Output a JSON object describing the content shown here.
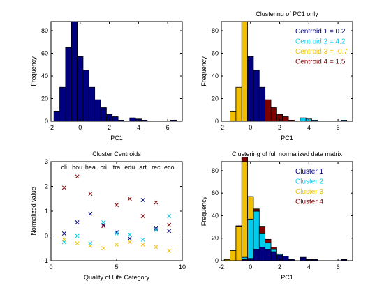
{
  "chart_data": [
    {
      "type": "bar",
      "title": "",
      "xlabel": "PC1",
      "ylabel": "Frequency",
      "xlim": [
        -2,
        7
      ],
      "ylim": [
        0,
        88
      ],
      "xticks": [
        -2,
        0,
        2,
        4,
        6
      ],
      "yticks": [
        0,
        20,
        40,
        60,
        80
      ],
      "bin_width": 0.4,
      "series": [
        {
          "color": "#000080",
          "bins": [
            [
              -1.8,
              9
            ],
            [
              -1.4,
              30
            ],
            [
              -1.0,
              65
            ],
            [
              -0.6,
              88
            ],
            [
              -0.2,
              57
            ],
            [
              0.2,
              45
            ],
            [
              0.6,
              30
            ],
            [
              1.0,
              19
            ],
            [
              1.4,
              12
            ],
            [
              1.8,
              6
            ],
            [
              2.2,
              4
            ],
            [
              2.6,
              1
            ],
            [
              3.4,
              3
            ],
            [
              3.8,
              2
            ],
            [
              4.2,
              1
            ],
            [
              6.2,
              1
            ]
          ]
        }
      ]
    },
    {
      "type": "bar",
      "title": "Clustering of PC1 only",
      "xlabel": "PC1",
      "ylabel": "Frequency",
      "xlim": [
        -2,
        7
      ],
      "ylim": [
        0,
        88
      ],
      "xticks": [
        -2,
        0,
        2,
        4,
        6
      ],
      "yticks": [
        0,
        20,
        40,
        60,
        80
      ],
      "bin_width": 0.4,
      "legend": [
        {
          "label": "Centroid 1 = 0.2",
          "color": "#000080"
        },
        {
          "label": "Centroid 2 = 4.2",
          "color": "#00ccee"
        },
        {
          "label": "Centroid 3 = -0.7",
          "color": "#f0c000"
        },
        {
          "label": "Centroid 4 = 1.5",
          "color": "#800000"
        }
      ],
      "series": [
        {
          "color": "#f0c000",
          "bins": [
            [
              -1.4,
              9
            ],
            [
              -1.0,
              30
            ],
            [
              -0.6,
              88
            ],
            [
              -0.2,
              27
            ]
          ]
        },
        {
          "color": "#000080",
          "bins": [
            [
              -0.2,
              57
            ],
            [
              0.2,
              45
            ],
            [
              0.6,
              30
            ]
          ]
        },
        {
          "color": "#800000",
          "bins": [
            [
              1.0,
              19
            ],
            [
              1.4,
              12
            ],
            [
              1.8,
              6
            ],
            [
              2.2,
              4
            ],
            [
              2.6,
              1
            ]
          ]
        },
        {
          "color": "#00ccee",
          "bins": [
            [
              3.4,
              3
            ],
            [
              3.8,
              2
            ],
            [
              4.2,
              1
            ],
            [
              6.2,
              1
            ]
          ]
        }
      ]
    },
    {
      "type": "scatter",
      "title": "Cluster Centroids",
      "xlabel": "Quality of Life Category",
      "ylabel": "Normalized value",
      "xlim": [
        0,
        10
      ],
      "ylim": [
        -1,
        3
      ],
      "xticks": [
        0,
        5,
        10
      ],
      "yticks": [
        -1,
        0,
        1,
        2,
        3
      ],
      "category_labels": [
        "cli",
        "hou",
        "hea",
        "cri",
        "tra",
        "edu",
        "art",
        "rec",
        "eco"
      ],
      "series": [
        {
          "color": "#000080",
          "x": [
            1,
            2,
            3,
            4,
            5,
            6,
            7,
            8,
            9
          ],
          "y": [
            0.1,
            0.55,
            0.9,
            0.45,
            0.15,
            -0.1,
            1.45,
            0.3,
            0.2
          ]
        },
        {
          "color": "#00ccee",
          "x": [
            1,
            2,
            3,
            4,
            5,
            6,
            7,
            8,
            9
          ],
          "y": [
            -0.25,
            0.0,
            -0.3,
            0.55,
            0.1,
            0.05,
            -0.15,
            0.25,
            0.8
          ]
        },
        {
          "color": "#f0c000",
          "x": [
            1,
            2,
            3,
            4,
            5,
            6,
            7,
            8,
            9
          ],
          "y": [
            -0.15,
            -0.3,
            -0.4,
            -0.5,
            -0.35,
            -0.25,
            -0.35,
            -0.45,
            -0.6
          ]
        },
        {
          "color": "#800000",
          "x": [
            1,
            2,
            3,
            4,
            5,
            6,
            7,
            8,
            9
          ],
          "y": [
            1.95,
            2.4,
            1.7,
            0.4,
            1.25,
            1.5,
            0.8,
            1.35,
            0.45
          ]
        }
      ]
    },
    {
      "type": "bar",
      "title": "Clustering of full normalized data matrix",
      "xlabel": "PC1",
      "ylabel": "Frequency",
      "xlim": [
        -2,
        7
      ],
      "ylim": [
        0,
        88
      ],
      "xticks": [
        -2,
        0,
        2,
        4,
        6
      ],
      "yticks": [
        0,
        20,
        40,
        60,
        80
      ],
      "bin_width": 0.4,
      "stacked": true,
      "legend": [
        {
          "label": "Cluster 1",
          "color": "#000080"
        },
        {
          "label": "Cluster 2",
          "color": "#00ccee"
        },
        {
          "label": "Cluster 3",
          "color": "#f0c000"
        },
        {
          "label": "Cluster 4",
          "color": "#800000"
        }
      ],
      "bin_starts": [
        -1.8,
        -1.4,
        -1.0,
        -0.6,
        -0.2,
        0.2,
        0.6,
        1.0,
        1.4,
        1.8,
        2.2,
        2.6,
        3.4,
        3.8,
        4.2,
        6.2
      ],
      "series": [
        {
          "name": "Cluster 1",
          "color": "#000080",
          "values": [
            0,
            0,
            0,
            1,
            2,
            10,
            12,
            10,
            8,
            5,
            4,
            1,
            3,
            1,
            1,
            1
          ]
        },
        {
          "name": "Cluster 2",
          "color": "#00ccee",
          "values": [
            0,
            0,
            0,
            2,
            35,
            34,
            12,
            6,
            2,
            1,
            0,
            0,
            0,
            0,
            0,
            0
          ]
        },
        {
          "name": "Cluster 3",
          "color": "#f0c000",
          "values": [
            1,
            9,
            30,
            85,
            20,
            0,
            0,
            0,
            0,
            0,
            0,
            0,
            0,
            0,
            0,
            0
          ]
        },
        {
          "name": "Cluster 4",
          "color": "#800000",
          "values": [
            0,
            0,
            1,
            4,
            0,
            2,
            6,
            3,
            2,
            0,
            0,
            0,
            0,
            0,
            0,
            0
          ]
        }
      ]
    }
  ]
}
